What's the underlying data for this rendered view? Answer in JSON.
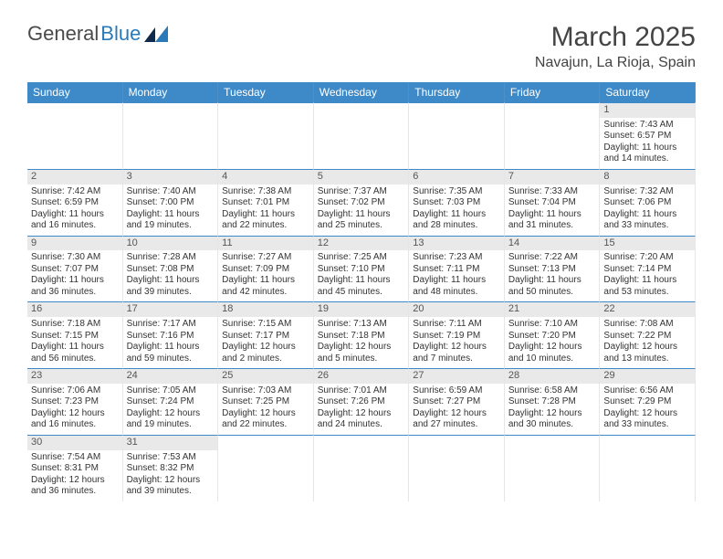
{
  "brand": {
    "part1": "General",
    "part2": "Blue"
  },
  "title": "March 2025",
  "location": "Navajun, La Rioja, Spain",
  "colors": {
    "header_bg": "#3e8ac9",
    "header_text": "#ffffff",
    "grid_line": "#3e8ac9",
    "daynum_bg": "#e9e9e9",
    "text": "#333333",
    "brand_blue": "#2a7ab9"
  },
  "day_headers": [
    "Sunday",
    "Monday",
    "Tuesday",
    "Wednesday",
    "Thursday",
    "Friday",
    "Saturday"
  ],
  "weeks": [
    [
      {
        "n": "",
        "sr": "",
        "ss": "",
        "dl": ""
      },
      {
        "n": "",
        "sr": "",
        "ss": "",
        "dl": ""
      },
      {
        "n": "",
        "sr": "",
        "ss": "",
        "dl": ""
      },
      {
        "n": "",
        "sr": "",
        "ss": "",
        "dl": ""
      },
      {
        "n": "",
        "sr": "",
        "ss": "",
        "dl": ""
      },
      {
        "n": "",
        "sr": "",
        "ss": "",
        "dl": ""
      },
      {
        "n": "1",
        "sr": "Sunrise: 7:43 AM",
        "ss": "Sunset: 6:57 PM",
        "dl": "Daylight: 11 hours and 14 minutes."
      }
    ],
    [
      {
        "n": "2",
        "sr": "Sunrise: 7:42 AM",
        "ss": "Sunset: 6:59 PM",
        "dl": "Daylight: 11 hours and 16 minutes."
      },
      {
        "n": "3",
        "sr": "Sunrise: 7:40 AM",
        "ss": "Sunset: 7:00 PM",
        "dl": "Daylight: 11 hours and 19 minutes."
      },
      {
        "n": "4",
        "sr": "Sunrise: 7:38 AM",
        "ss": "Sunset: 7:01 PM",
        "dl": "Daylight: 11 hours and 22 minutes."
      },
      {
        "n": "5",
        "sr": "Sunrise: 7:37 AM",
        "ss": "Sunset: 7:02 PM",
        "dl": "Daylight: 11 hours and 25 minutes."
      },
      {
        "n": "6",
        "sr": "Sunrise: 7:35 AM",
        "ss": "Sunset: 7:03 PM",
        "dl": "Daylight: 11 hours and 28 minutes."
      },
      {
        "n": "7",
        "sr": "Sunrise: 7:33 AM",
        "ss": "Sunset: 7:04 PM",
        "dl": "Daylight: 11 hours and 31 minutes."
      },
      {
        "n": "8",
        "sr": "Sunrise: 7:32 AM",
        "ss": "Sunset: 7:06 PM",
        "dl": "Daylight: 11 hours and 33 minutes."
      }
    ],
    [
      {
        "n": "9",
        "sr": "Sunrise: 7:30 AM",
        "ss": "Sunset: 7:07 PM",
        "dl": "Daylight: 11 hours and 36 minutes."
      },
      {
        "n": "10",
        "sr": "Sunrise: 7:28 AM",
        "ss": "Sunset: 7:08 PM",
        "dl": "Daylight: 11 hours and 39 minutes."
      },
      {
        "n": "11",
        "sr": "Sunrise: 7:27 AM",
        "ss": "Sunset: 7:09 PM",
        "dl": "Daylight: 11 hours and 42 minutes."
      },
      {
        "n": "12",
        "sr": "Sunrise: 7:25 AM",
        "ss": "Sunset: 7:10 PM",
        "dl": "Daylight: 11 hours and 45 minutes."
      },
      {
        "n": "13",
        "sr": "Sunrise: 7:23 AM",
        "ss": "Sunset: 7:11 PM",
        "dl": "Daylight: 11 hours and 48 minutes."
      },
      {
        "n": "14",
        "sr": "Sunrise: 7:22 AM",
        "ss": "Sunset: 7:13 PM",
        "dl": "Daylight: 11 hours and 50 minutes."
      },
      {
        "n": "15",
        "sr": "Sunrise: 7:20 AM",
        "ss": "Sunset: 7:14 PM",
        "dl": "Daylight: 11 hours and 53 minutes."
      }
    ],
    [
      {
        "n": "16",
        "sr": "Sunrise: 7:18 AM",
        "ss": "Sunset: 7:15 PM",
        "dl": "Daylight: 11 hours and 56 minutes."
      },
      {
        "n": "17",
        "sr": "Sunrise: 7:17 AM",
        "ss": "Sunset: 7:16 PM",
        "dl": "Daylight: 11 hours and 59 minutes."
      },
      {
        "n": "18",
        "sr": "Sunrise: 7:15 AM",
        "ss": "Sunset: 7:17 PM",
        "dl": "Daylight: 12 hours and 2 minutes."
      },
      {
        "n": "19",
        "sr": "Sunrise: 7:13 AM",
        "ss": "Sunset: 7:18 PM",
        "dl": "Daylight: 12 hours and 5 minutes."
      },
      {
        "n": "20",
        "sr": "Sunrise: 7:11 AM",
        "ss": "Sunset: 7:19 PM",
        "dl": "Daylight: 12 hours and 7 minutes."
      },
      {
        "n": "21",
        "sr": "Sunrise: 7:10 AM",
        "ss": "Sunset: 7:20 PM",
        "dl": "Daylight: 12 hours and 10 minutes."
      },
      {
        "n": "22",
        "sr": "Sunrise: 7:08 AM",
        "ss": "Sunset: 7:22 PM",
        "dl": "Daylight: 12 hours and 13 minutes."
      }
    ],
    [
      {
        "n": "23",
        "sr": "Sunrise: 7:06 AM",
        "ss": "Sunset: 7:23 PM",
        "dl": "Daylight: 12 hours and 16 minutes."
      },
      {
        "n": "24",
        "sr": "Sunrise: 7:05 AM",
        "ss": "Sunset: 7:24 PM",
        "dl": "Daylight: 12 hours and 19 minutes."
      },
      {
        "n": "25",
        "sr": "Sunrise: 7:03 AM",
        "ss": "Sunset: 7:25 PM",
        "dl": "Daylight: 12 hours and 22 minutes."
      },
      {
        "n": "26",
        "sr": "Sunrise: 7:01 AM",
        "ss": "Sunset: 7:26 PM",
        "dl": "Daylight: 12 hours and 24 minutes."
      },
      {
        "n": "27",
        "sr": "Sunrise: 6:59 AM",
        "ss": "Sunset: 7:27 PM",
        "dl": "Daylight: 12 hours and 27 minutes."
      },
      {
        "n": "28",
        "sr": "Sunrise: 6:58 AM",
        "ss": "Sunset: 7:28 PM",
        "dl": "Daylight: 12 hours and 30 minutes."
      },
      {
        "n": "29",
        "sr": "Sunrise: 6:56 AM",
        "ss": "Sunset: 7:29 PM",
        "dl": "Daylight: 12 hours and 33 minutes."
      }
    ],
    [
      {
        "n": "30",
        "sr": "Sunrise: 7:54 AM",
        "ss": "Sunset: 8:31 PM",
        "dl": "Daylight: 12 hours and 36 minutes."
      },
      {
        "n": "31",
        "sr": "Sunrise: 7:53 AM",
        "ss": "Sunset: 8:32 PM",
        "dl": "Daylight: 12 hours and 39 minutes."
      },
      {
        "n": "",
        "sr": "",
        "ss": "",
        "dl": ""
      },
      {
        "n": "",
        "sr": "",
        "ss": "",
        "dl": ""
      },
      {
        "n": "",
        "sr": "",
        "ss": "",
        "dl": ""
      },
      {
        "n": "",
        "sr": "",
        "ss": "",
        "dl": ""
      },
      {
        "n": "",
        "sr": "",
        "ss": "",
        "dl": ""
      }
    ]
  ]
}
